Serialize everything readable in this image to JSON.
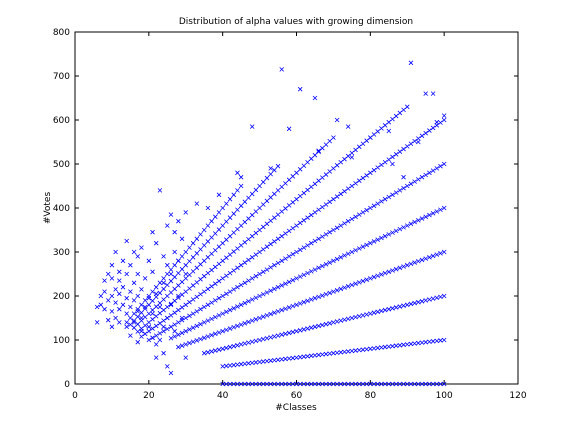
{
  "chart_data": {
    "type": "scatter",
    "title": "Distribution of alpha values with growing dimension",
    "xlabel": "#Classes",
    "ylabel": "#Votes",
    "xlim": [
      0,
      120
    ],
    "ylim": [
      0,
      800
    ],
    "xticks": [
      0,
      20,
      40,
      60,
      80,
      100,
      120
    ],
    "yticks": [
      0,
      100,
      200,
      300,
      400,
      500,
      600,
      700,
      800
    ],
    "grid": false,
    "legend": "none",
    "marker": "x",
    "colors": {
      "marker": "#0000ff",
      "axes": "#000000",
      "background": "#ffffff"
    },
    "series": [
      {
        "points": [
          [
            6,
            140
          ],
          [
            6,
            175
          ],
          [
            7,
            180
          ],
          [
            7,
            200
          ],
          [
            8,
            170
          ],
          [
            8,
            210
          ],
          [
            8,
            235
          ],
          [
            9,
            145
          ],
          [
            9,
            190
          ],
          [
            9,
            250
          ],
          [
            10,
            130
          ],
          [
            10,
            165
          ],
          [
            10,
            200
          ],
          [
            10,
            240
          ],
          [
            10,
            270
          ],
          [
            11,
            150
          ],
          [
            11,
            185
          ],
          [
            11,
            215
          ],
          [
            11,
            300
          ],
          [
            12,
            140
          ],
          [
            12,
            170
          ],
          [
            12,
            205
          ],
          [
            12,
            235
          ],
          [
            12,
            255
          ],
          [
            13,
            180
          ],
          [
            13,
            220
          ],
          [
            13,
            280
          ],
          [
            14,
            130
          ],
          [
            14,
            160
          ],
          [
            14,
            195
          ],
          [
            14,
            250
          ],
          [
            14,
            325
          ],
          [
            15,
            110
          ],
          [
            15,
            175
          ],
          [
            15,
            210
          ],
          [
            15,
            270
          ],
          [
            16,
            140
          ],
          [
            16,
            190
          ],
          [
            16,
            230
          ],
          [
            16,
            300
          ],
          [
            17,
            95
          ],
          [
            17,
            165
          ],
          [
            17,
            200
          ],
          [
            17,
            250
          ],
          [
            17,
            290
          ],
          [
            18,
            120
          ],
          [
            18,
            150
          ],
          [
            18,
            215
          ],
          [
            18,
            310
          ],
          [
            19,
            175
          ],
          [
            19,
            240
          ],
          [
            20,
            130
          ],
          [
            20,
            195
          ],
          [
            20,
            280
          ],
          [
            21,
            105
          ],
          [
            21,
            160
          ],
          [
            21,
            255
          ],
          [
            21,
            345
          ],
          [
            22,
            60
          ],
          [
            22,
            90
          ],
          [
            22,
            205
          ],
          [
            22,
            320
          ],
          [
            23,
            100
          ],
          [
            23,
            175
          ],
          [
            23,
            440
          ],
          [
            24,
            70
          ],
          [
            24,
            130
          ],
          [
            24,
            230
          ],
          [
            24,
            290
          ],
          [
            25,
            40
          ],
          [
            25,
            150
          ],
          [
            25,
            270
          ],
          [
            25,
            360
          ],
          [
            26,
            25
          ],
          [
            26,
            180
          ],
          [
            26,
            250
          ],
          [
            26,
            385
          ],
          [
            27,
            120
          ],
          [
            27,
            300
          ],
          [
            27,
            345
          ],
          [
            28,
            200
          ],
          [
            28,
            280
          ],
          [
            28,
            370
          ],
          [
            29,
            150
          ],
          [
            29,
            330
          ],
          [
            30,
            60
          ],
          [
            30,
            250
          ],
          [
            30,
            390
          ],
          [
            33,
            410
          ],
          [
            36,
            400
          ],
          [
            39,
            430
          ],
          [
            44,
            480
          ],
          [
            45,
            470
          ],
          [
            48,
            585
          ],
          [
            53,
            490
          ],
          [
            56,
            715
          ],
          [
            58,
            580
          ],
          [
            61,
            670
          ],
          [
            65,
            650
          ],
          [
            66,
            530
          ],
          [
            71,
            600
          ],
          [
            74,
            585
          ],
          [
            75,
            515
          ],
          [
            80,
            560
          ],
          [
            85,
            575
          ],
          [
            86,
            500
          ],
          [
            89,
            470
          ],
          [
            91,
            730
          ],
          [
            93,
            550
          ],
          [
            95,
            660
          ],
          [
            97,
            660
          ],
          [
            98,
            595
          ],
          [
            100,
            610
          ]
        ]
      }
    ],
    "ray_families": [
      {
        "slope": 1,
        "x_start": 40,
        "x_end": 100
      },
      {
        "slope": 2,
        "x_start": 35,
        "x_end": 100
      },
      {
        "slope": 3,
        "x_start": 28,
        "x_end": 100
      },
      {
        "slope": 4,
        "x_start": 26,
        "x_end": 100
      },
      {
        "slope": 5,
        "x_start": 20,
        "x_end": 100
      },
      {
        "slope": 6,
        "x_start": 18,
        "x_end": 100
      },
      {
        "slope": 7,
        "x_start": 17,
        "x_end": 90
      },
      {
        "slope": 8,
        "x_start": 16,
        "x_end": 70
      },
      {
        "slope": 9,
        "x_start": 15,
        "x_end": 55
      },
      {
        "slope": 10,
        "x_start": 14,
        "x_end": 45
      }
    ],
    "zero_line": {
      "x_start": 40,
      "x_end": 100,
      "y": 0
    }
  }
}
